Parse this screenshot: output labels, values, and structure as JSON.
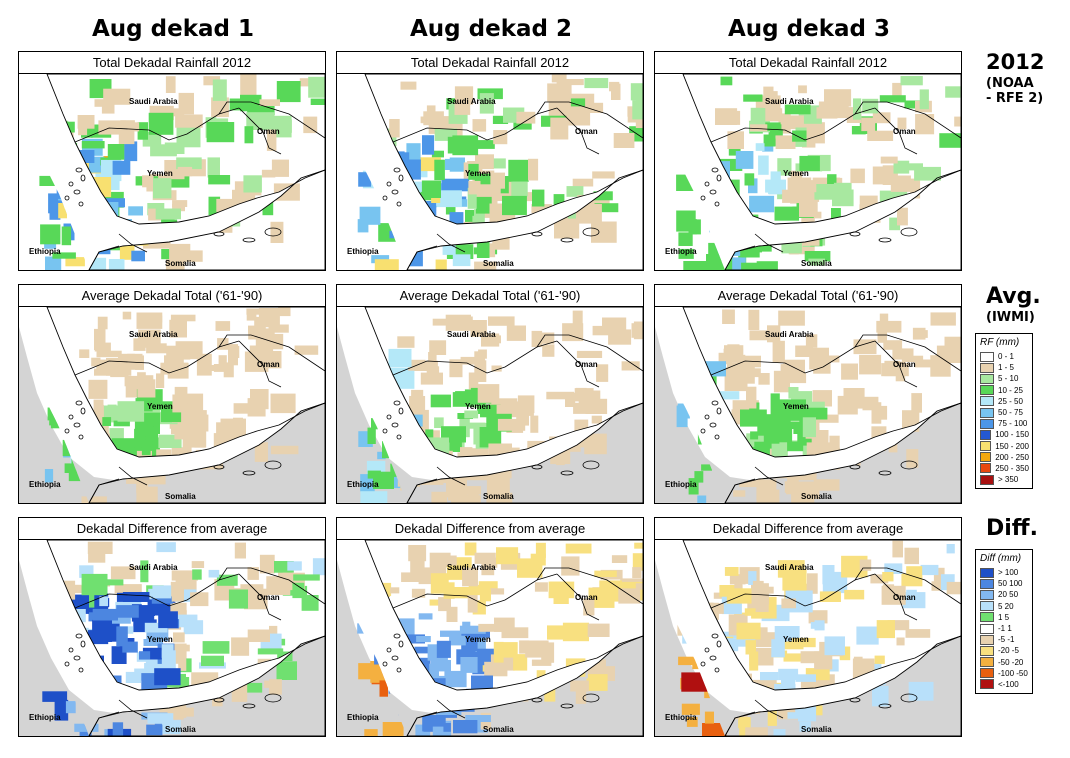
{
  "columns": [
    "Aug dekad 1",
    "Aug dekad 2",
    "Aug dekad 3"
  ],
  "rows": [
    {
      "panel_title": "Total Dekadal Rainfall 2012"
    },
    {
      "panel_title": "Average Dekadal Total ('61-'90)"
    },
    {
      "panel_title": "Dekadal Difference from average"
    }
  ],
  "row_labels": {
    "rainfall_year": "2012",
    "rainfall_source_1": "(NOAA",
    "rainfall_source_2": "- RFE 2)",
    "average": "Avg.",
    "average_source": "(IWMI)",
    "difference": "Diff."
  },
  "place_labels": {
    "saudi": "Saudi Arabia",
    "oman": "Oman",
    "yemen": "Yemen",
    "ethiopia": "Ethiopia",
    "somalia": "Somalia"
  },
  "rf_legend": {
    "title": "RF (mm)",
    "items": [
      {
        "label": "0 - 1",
        "color": "#ffffff"
      },
      {
        "label": "1 - 5",
        "color": "#e8d2b0"
      },
      {
        "label": "5 - 10",
        "color": "#a8e8a0"
      },
      {
        "label": "10 - 25",
        "color": "#58d858"
      },
      {
        "label": "25 - 50",
        "color": "#b4e8f8"
      },
      {
        "label": "50 - 75",
        "color": "#78c4f0"
      },
      {
        "label": "75 - 100",
        "color": "#4c96e8"
      },
      {
        "label": "100 - 150",
        "color": "#2458d0"
      },
      {
        "label": "150 - 200",
        "color": "#f8e070"
      },
      {
        "label": "200 - 250",
        "color": "#f4a810"
      },
      {
        "label": "250 - 350",
        "color": "#e84810"
      },
      {
        "label": "> 350",
        "color": "#a81010"
      }
    ]
  },
  "diff_legend": {
    "title": "Diff (mm)",
    "items": [
      {
        "label": "> 100",
        "color": "#1e50c8"
      },
      {
        "label": "50  100",
        "color": "#4c86e0"
      },
      {
        "label": "20  50",
        "color": "#82b8f0"
      },
      {
        "label": "5  20",
        "color": "#b8e0fa"
      },
      {
        "label": "1  5",
        "color": "#70e070"
      },
      {
        "label": "-1  1",
        "color": "#ffffff"
      },
      {
        "label": "-5  -1",
        "color": "#e8d2b0"
      },
      {
        "label": "-20  -5",
        "color": "#f8e080"
      },
      {
        "label": "-50  -20",
        "color": "#f4b040"
      },
      {
        "label": "-100  -50",
        "color": "#e86010"
      },
      {
        "label": "<-100",
        "color": "#b01010"
      }
    ]
  },
  "colors": {
    "land_outside": "#d4d4d4",
    "sea": "#ffffff",
    "border": "#000000"
  }
}
